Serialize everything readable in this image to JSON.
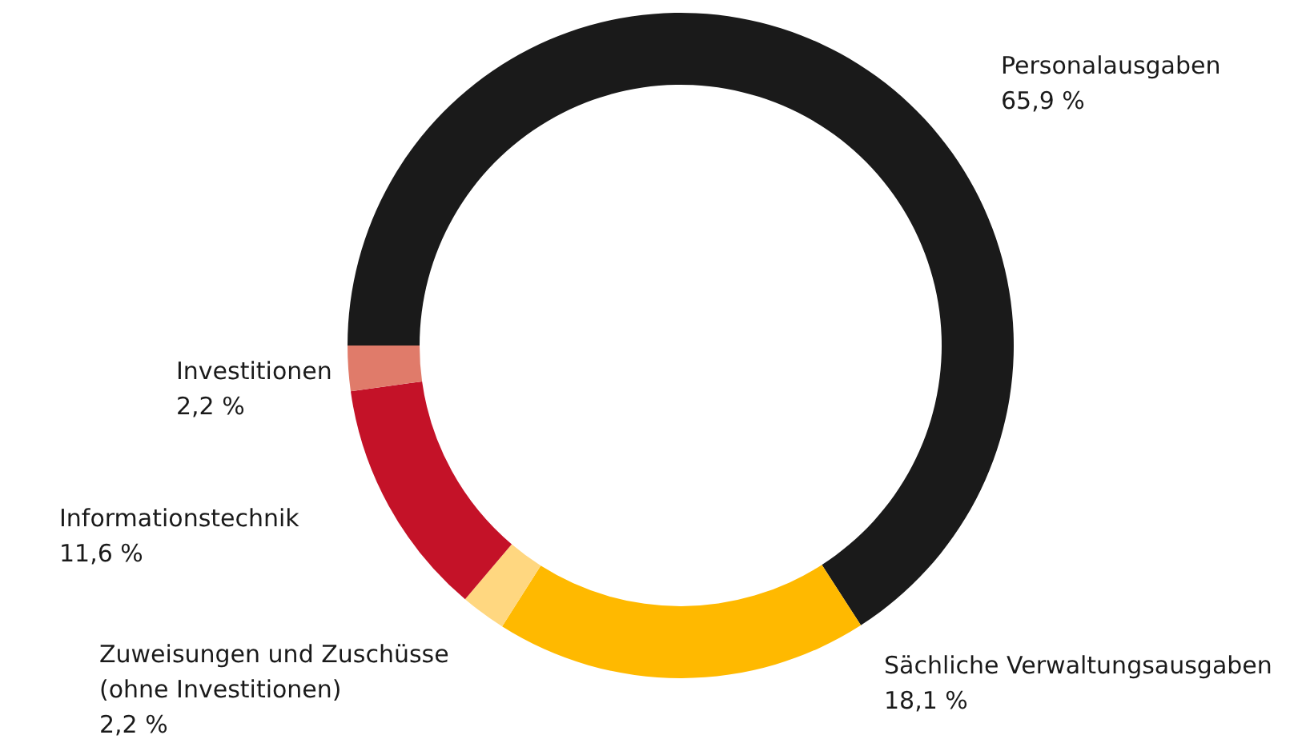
{
  "chart_data": {
    "type": "donut",
    "categories": [
      "Personalausgaben",
      "Sächliche Verwaltungsausgaben",
      "Zuweisungen und Zuschüsse\n(ohne Investitionen)",
      "Informationstechnik",
      "Investitionen"
    ],
    "values": [
      65.9,
      18.1,
      2.2,
      11.6,
      2.2
    ],
    "colors": [
      "#1a1a1a",
      "#ffb900",
      "#ffd780",
      "#c41228",
      "#e07b6a"
    ],
    "value_labels": [
      "65,9 %",
      "18,1 %",
      "2,2 %",
      "11,6 %",
      "2,2 %"
    ],
    "legend": false
  }
}
